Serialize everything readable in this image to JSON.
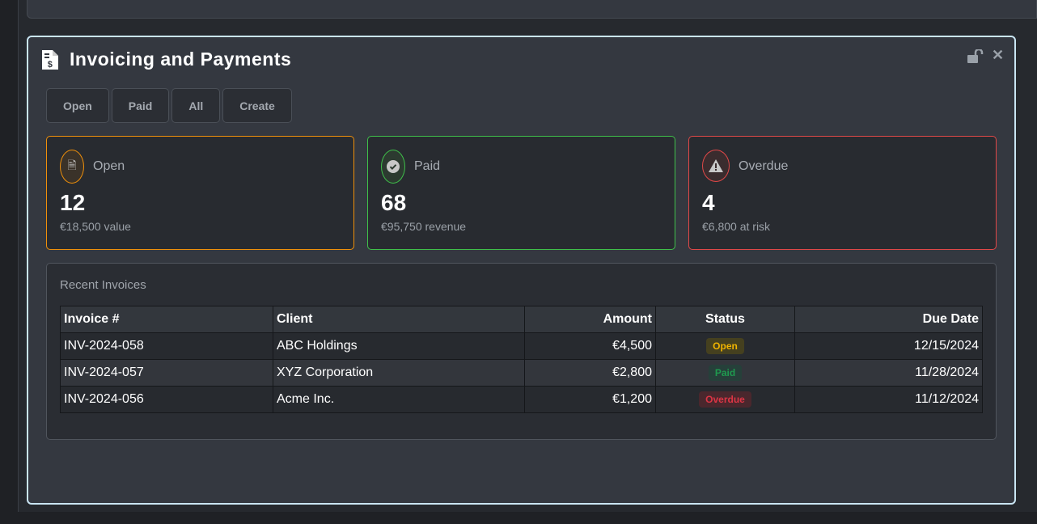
{
  "header": {
    "title": "Invoicing and Payments",
    "icon": "file-invoice-dollar-icon"
  },
  "filters": [
    "Open",
    "Paid",
    "All",
    "Create"
  ],
  "cards": [
    {
      "label": "Open",
      "value": "12",
      "sub": "€18,500 value",
      "color": "#f0900a",
      "icon": "file-icon"
    },
    {
      "label": "Paid",
      "value": "68",
      "sub": "€95,750 revenue",
      "color": "#3fc04a",
      "icon": "check-circle-icon"
    },
    {
      "label": "Overdue",
      "value": "4",
      "sub": "€6,800 at risk",
      "color": "#e04848",
      "icon": "warning-icon"
    }
  ],
  "recent": {
    "title": "Recent Invoices",
    "columns": [
      "Invoice #",
      "Client",
      "Amount",
      "Status",
      "Due Date"
    ],
    "rows": [
      [
        "INV-2024-058",
        "ABC Holdings",
        "€4,500",
        "Open",
        "12/15/2024"
      ],
      [
        "INV-2024-057",
        "XYZ Corporation",
        "€2,800",
        "Paid",
        "11/28/2024"
      ],
      [
        "INV-2024-056",
        "Acme Inc.",
        "€1,200",
        "Overdue",
        "11/12/2024"
      ]
    ]
  },
  "status_colors": {
    "Open": "#f0b400",
    "Paid": "#1f9a4f",
    "Overdue": "#dc3545"
  }
}
